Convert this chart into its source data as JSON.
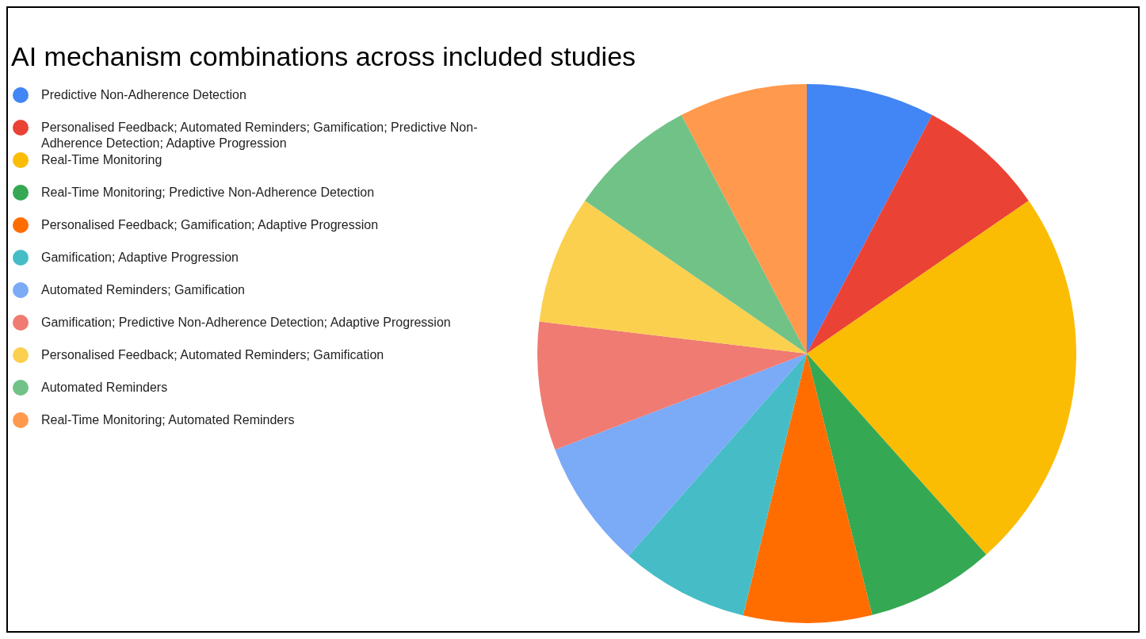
{
  "chart_data": {
    "type": "pie",
    "title": "AI mechanism combinations across included studies",
    "categories": [
      "Predictive Non-Adherence Detection",
      "Personalised Feedback; Automated Reminders; Gamification; Predictive Non-Adherence Detection; Adaptive Progression",
      "Real-Time Monitoring",
      "Real-Time Monitoring; Predictive Non-Adherence Detection",
      "Personalised Feedback; Gamification; Adaptive Progression",
      "Gamification; Adaptive Progression",
      "Automated Reminders; Gamification",
      "Gamification; Predictive Non-Adherence Detection; Adaptive Progression",
      "Personalised Feedback; Automated Reminders; Gamification",
      "Automated Reminders",
      "Real-Time Monitoring; Automated Reminders"
    ],
    "values": [
      7.7,
      7.7,
      23,
      7.7,
      7.7,
      7.7,
      7.7,
      7.7,
      7.7,
      7.7,
      7.7
    ],
    "colors": [
      "#4285f4",
      "#ea4335",
      "#fbbc04",
      "#34a853",
      "#ff6d01",
      "#46bdc6",
      "#7baaf7",
      "#f07b72",
      "#fcd04f",
      "#71c287",
      "#ff994d"
    ],
    "legend": "left"
  }
}
